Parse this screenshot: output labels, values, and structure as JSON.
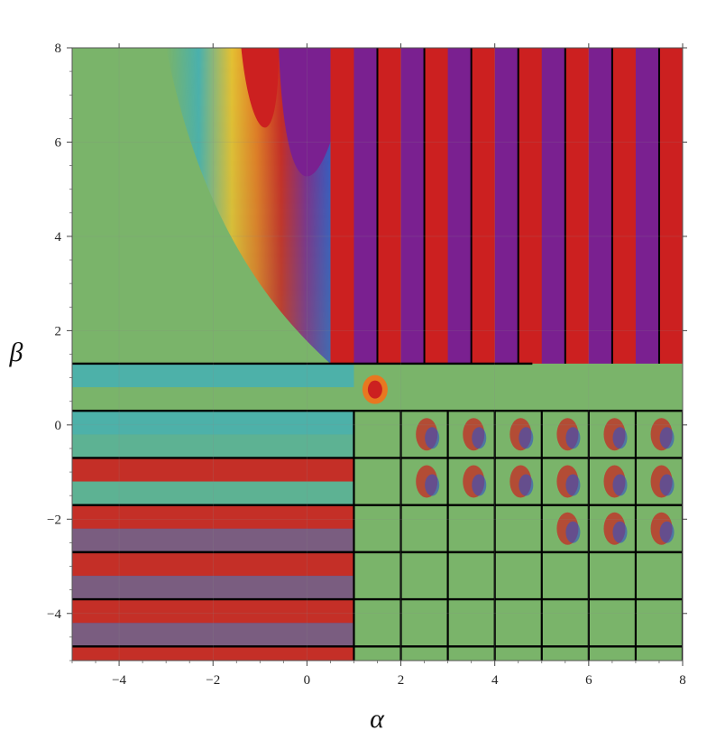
{
  "chart_data": {
    "type": "heatmap",
    "title": "",
    "xlabel": "α",
    "ylabel": "β",
    "xlim": [
      -5,
      8
    ],
    "ylim": [
      -5,
      8
    ],
    "x_ticks": [
      -4,
      -2,
      0,
      2,
      4,
      6,
      8
    ],
    "x_tick_labels": [
      "−4",
      "−2",
      "0",
      "2",
      "4",
      "6",
      "8"
    ],
    "y_ticks": [
      -4,
      -2,
      0,
      2,
      4,
      6,
      8
    ],
    "y_tick_labels": [
      "−4",
      "−2",
      "0",
      "2",
      "4",
      "6",
      "8"
    ],
    "grid": true,
    "legend": "none",
    "colors": {
      "background": "#7ab46a",
      "red": "#cc2020",
      "purple": "#7a2090",
      "blue": "#3050c8",
      "cyan": "#48b0b0",
      "yellow": "#e8c030",
      "orange": "#e87820",
      "singular_line": "#000000"
    },
    "singular_lines": {
      "vertical_alpha": [
        1,
        2,
        3,
        4,
        5,
        6,
        7,
        8
      ],
      "horizontal_beta": [
        1.3,
        0.3,
        -0.7,
        -1.7,
        -2.7,
        -3.7,
        -4.7
      ]
    },
    "regions": [
      {
        "name": "upper-right vertical stripes",
        "alpha_range": [
          0.5,
          8
        ],
        "beta_range": [
          1.3,
          8
        ],
        "pattern": "alternating red/purple vertical bands, period 1 in alpha"
      },
      {
        "name": "left horizontal stripes",
        "alpha_range": [
          -5,
          1
        ],
        "beta_range": [
          -5,
          1.3
        ],
        "pattern": "alternating red/purple/blue/cyan horizontal bands, period 1 in beta"
      },
      {
        "name": "lower-right cells",
        "alpha_range": [
          1,
          8
        ],
        "beta_range": [
          -5,
          0.3
        ],
        "pattern": "unit cells, mostly green with singular crossings"
      },
      {
        "name": "upper-left smooth region",
        "alpha_range": [
          -5,
          0.5
        ],
        "beta_range": [
          1.3,
          8
        ],
        "pattern": "smooth green with a multicolor plume near alpha -1"
      }
    ]
  }
}
